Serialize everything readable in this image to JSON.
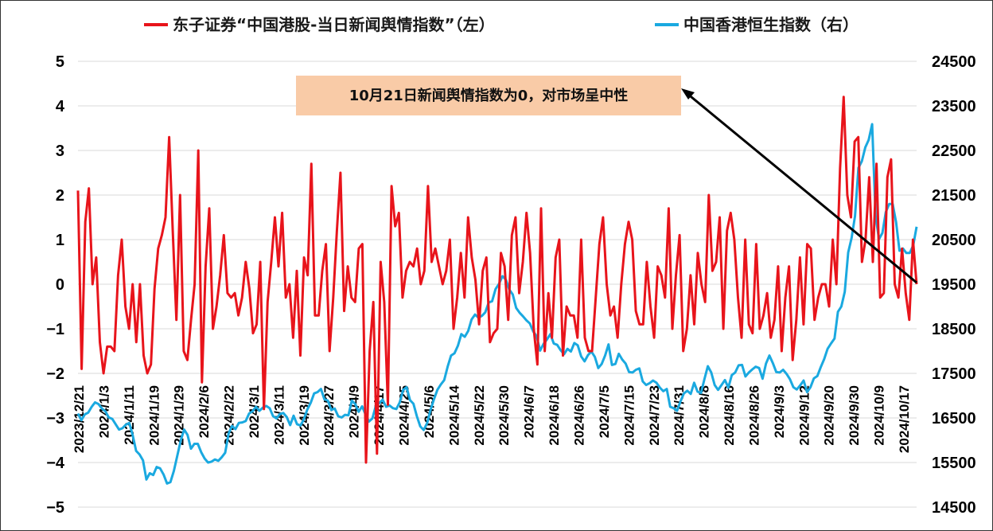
{
  "chart_data": {
    "type": "line",
    "legend": {
      "placement": "top",
      "entries": [
        {
          "key": "sentiment",
          "label": "东子证券“中国港股-当日新闻舆情指数”（左）",
          "color": "#e8141b"
        },
        {
          "key": "hsi",
          "label": "中国香港恒生指数（右）",
          "color": "#1aa9e0"
        }
      ]
    },
    "left_axis": {
      "min": -5,
      "max": 5,
      "ticks": [
        "5",
        "4",
        "3",
        "2",
        "1",
        "0",
        "−1",
        "−2",
        "−3",
        "−4",
        "−5"
      ]
    },
    "right_axis": {
      "min": 14500,
      "max": 24500,
      "ticks": [
        "24500",
        "23500",
        "22500",
        "21500",
        "20500",
        "19500",
        "18500",
        "17500",
        "16500",
        "15500",
        "14500"
      ]
    },
    "x_labels": [
      "2023/12/21",
      "2024/1/3",
      "2024/1/11",
      "2024/1/19",
      "2024/1/29",
      "2024/2/6",
      "2024/2/22",
      "2024/3/1",
      "2024/3/11",
      "2024/3/19",
      "2024/3/27",
      "2024/4/9",
      "2024/4/17",
      "2024/4/25",
      "2024/5/6",
      "2024/5/14",
      "2024/5/22",
      "2024/5/30",
      "2024/6/7",
      "2024/6/18",
      "2024/6/26",
      "2024/7/5",
      "2024/7/15",
      "2024/7/23",
      "2024/7/31",
      "2024/8/8",
      "2024/8/16",
      "2024/8/26",
      "2024/9/3",
      "2024/9/12",
      "2024/9/20",
      "2024/9/30",
      "2024/10/9",
      "2024/10/17"
    ],
    "annotation": {
      "text": "10月21日新闻舆情指数为0，对市场呈中性",
      "bg": "#f9cba7"
    },
    "series": [
      {
        "name": "东子证券“中国港股-当日新闻舆情指数”（左）",
        "axis": "left",
        "color": "#e8141b",
        "values": [
          2.1,
          -1.9,
          1.4,
          2.15,
          0,
          0.6,
          -1.3,
          -2.0,
          -1.4,
          -1.4,
          -1.5,
          0.2,
          1.0,
          -0.5,
          -1.0,
          0.0,
          -1.3,
          0.0,
          -1.6,
          -2.0,
          -1.8,
          -0.1,
          0.8,
          1.1,
          1.5,
          3.3,
          1.2,
          -0.8,
          2.0,
          -1.5,
          -1.7,
          -0.8,
          0.0,
          3.0,
          -2.2,
          0.4,
          1.7,
          -1.0,
          -0.5,
          0.2,
          1.1,
          -0.2,
          -0.3,
          -0.2,
          -0.7,
          -0.3,
          0.5,
          -0.1,
          -1.1,
          -0.9,
          0.5,
          -2.8,
          -0.4,
          0.5,
          1.5,
          0.4,
          1.6,
          -0.3,
          0.0,
          -1.2,
          0.3,
          -1.6,
          0.6,
          0.2,
          2.7,
          -0.7,
          -0.7,
          0.3,
          0.9,
          -1.5,
          -0.3,
          1.2,
          2.5,
          -0.6,
          0.4,
          -0.3,
          -0.4,
          0.8,
          0.9,
          -4.0,
          -1.5,
          -0.4,
          -3.8,
          0.5,
          -0.4,
          -2.7,
          2.2,
          1.3,
          1.6,
          -0.3,
          0.3,
          0.5,
          0.4,
          0.8,
          0.0,
          0.3,
          2.2,
          0.5,
          0.8,
          0.4,
          0.0,
          0.3,
          1.0,
          -1.0,
          -0.3,
          0.7,
          -0.3,
          1.5,
          0.6,
          0.1,
          -0.9,
          0.3,
          0.6,
          -1.3,
          -1.1,
          -1.0,
          0.7,
          0.4,
          -0.8,
          1.1,
          1.5,
          -0.2,
          0.5,
          1.6,
          0.7,
          -1.0,
          -1.8,
          1.7,
          -1.5,
          -0.2,
          -1.2,
          0.6,
          1.0,
          -1.6,
          -0.5,
          -0.7,
          -0.7,
          -1.2,
          1.0,
          -1.2,
          -1.5,
          -1.5,
          -0.3,
          0.9,
          1.5,
          0.0,
          -0.7,
          -0.5,
          -1.2,
          0.0,
          0.9,
          1.4,
          1.0,
          -0.6,
          -0.9,
          -0.9,
          0.5,
          -0.5,
          -1.2,
          0.4,
          0.2,
          -0.3,
          1.7,
          -1.0,
          0.2,
          1.1,
          -1.5,
          -1.0,
          0.2,
          -0.9,
          0.7,
          0.0,
          -0.4,
          2.0,
          0.3,
          0.5,
          1.5,
          -1.0,
          1.2,
          1.6,
          1.0,
          -0.3,
          -1.2,
          1.0,
          -0.9,
          -1.1,
          0.9,
          -1.0,
          -0.7,
          -0.2,
          -1.2,
          -0.8,
          0.4,
          -1.5,
          -0.3,
          0.4,
          -1.7,
          -0.8,
          0.6,
          -0.9,
          0.9,
          0.8,
          -0.8,
          -0.3,
          0.0,
          0.0,
          -0.5,
          1.0,
          0.0,
          2.6,
          4.2,
          2.0,
          1.5,
          3.2,
          3.3,
          0.5,
          1.0,
          2.4,
          0.5,
          2.7,
          -0.3,
          -0.2,
          2.4,
          2.8,
          0.0,
          -0.3,
          0.8,
          -0.2,
          -0.8,
          1.0,
          0.0
        ]
      },
      {
        "name": "中国香港恒生指数（右）",
        "axis": "right",
        "color": "#1aa9e0",
        "values": [
          16600,
          16450,
          16580,
          16620,
          16750,
          16850,
          16810,
          16710,
          16650,
          16510,
          16480,
          16360,
          16240,
          16270,
          16350,
          16390,
          16110,
          15760,
          15680,
          15550,
          15120,
          15260,
          15220,
          15400,
          15370,
          15230,
          15030,
          15060,
          15310,
          15650,
          15990,
          16240,
          16120,
          15810,
          15920,
          15920,
          15730,
          15590,
          15500,
          15520,
          15570,
          15540,
          15620,
          15720,
          16150,
          16320,
          16250,
          16390,
          16400,
          16430,
          16600,
          16650,
          16750,
          16660,
          16730,
          16770,
          16720,
          16540,
          16490,
          16590,
          16610,
          16520,
          16340,
          16550,
          16360,
          16330,
          16470,
          16690,
          16840,
          17050,
          17080,
          17150,
          16920,
          16890,
          16680,
          16710,
          16540,
          16510,
          16570,
          16560,
          16890,
          16810,
          16640,
          16760,
          16580,
          16420,
          16490,
          16770,
          16830,
          16910,
          16750,
          16780,
          16720,
          16700,
          16850,
          17130,
          17190,
          16900,
          16820,
          16540,
          16310,
          16230,
          16380,
          16680,
          16920,
          17130,
          17250,
          17350,
          17650,
          17900,
          17950,
          18120,
          18380,
          18320,
          18450,
          18710,
          18820,
          18750,
          18790,
          18870,
          19090,
          19120,
          19390,
          19510,
          19680,
          19600,
          19380,
          19270,
          18970,
          18860,
          18780,
          18690,
          18620,
          18440,
          18330,
          18010,
          18160,
          18260,
          18380,
          18170,
          18140,
          18020,
          17930,
          18050,
          17990,
          18180,
          18130,
          17880,
          17770,
          17910,
          17990,
          17870,
          17620,
          17710,
          17900,
          18150,
          17690,
          17710,
          17940,
          17810,
          17720,
          17530,
          17520,
          17580,
          17610,
          17320,
          17240,
          17280,
          17340,
          17290,
          17180,
          17100,
          17150,
          16750,
          16720,
          16660,
          16870,
          17050,
          17110,
          17040,
          17290,
          17090,
          17060,
          17370,
          17660,
          17520,
          17240,
          17130,
          17240,
          17350,
          17180,
          17460,
          17520,
          17680,
          17690,
          17430,
          17520,
          17590,
          17650,
          17620,
          17380,
          17720,
          17900,
          17730,
          17530,
          17520,
          17580,
          17490,
          17370,
          17190,
          17140,
          17230,
          17340,
          17080,
          17190,
          17390,
          17440,
          17640,
          17820,
          18050,
          18170,
          18280,
          18880,
          19000,
          19330,
          20210,
          20540,
          21030,
          22110,
          22260,
          22570,
          22740,
          23090,
          21040,
          20510,
          20650,
          21120,
          21300,
          21300,
          20890,
          20250,
          20300,
          20200,
          20200,
          20370,
          20790
        ]
      }
    ]
  }
}
